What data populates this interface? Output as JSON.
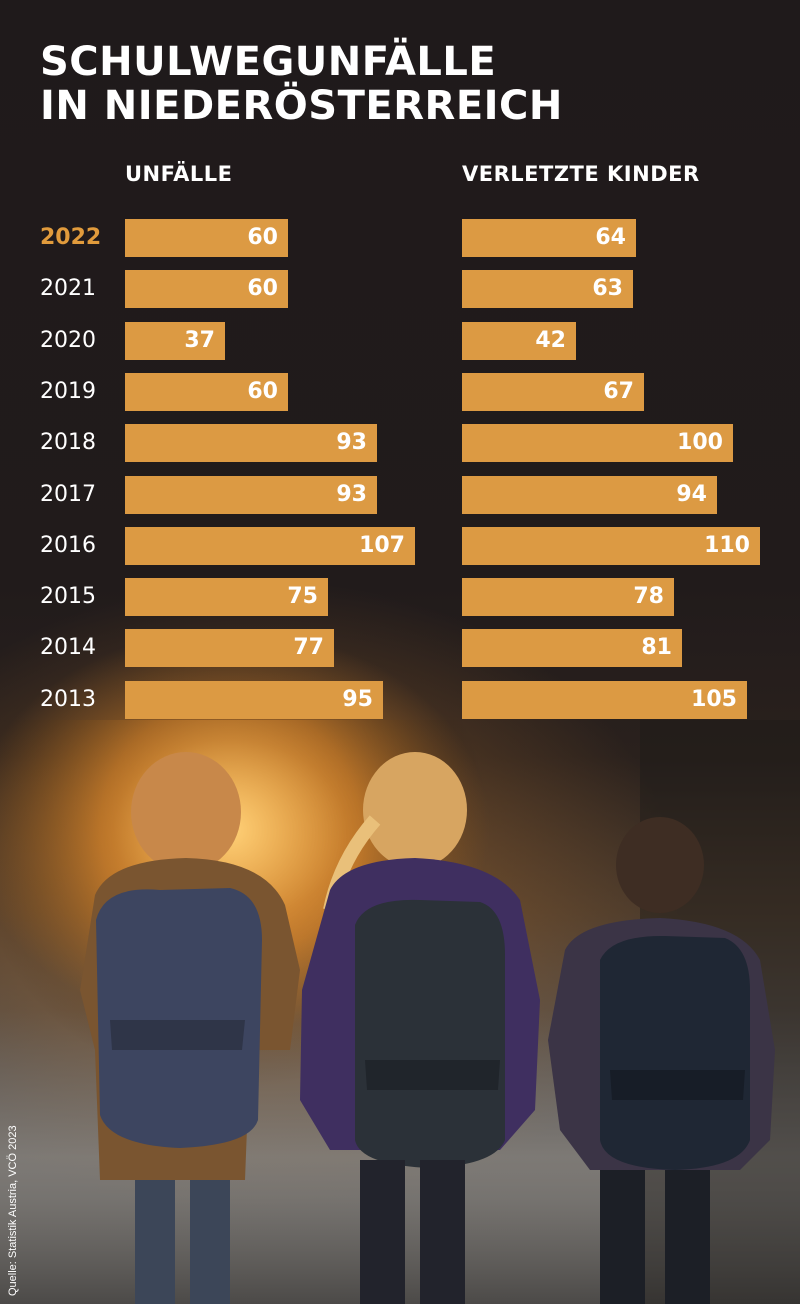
{
  "title": {
    "line1": "SCHULWEGUNFÄLLE",
    "line2": "IN NIEDERÖSTERREICH"
  },
  "source": "Quelle: Statistik Austria, VCÖ 2023",
  "colors": {
    "bar": "#dc9a43",
    "highlight_year": "#e19b3c",
    "text": "#ffffff",
    "background": "#1f1a1b"
  },
  "chart_data": [
    {
      "type": "bar",
      "orientation": "horizontal",
      "title": "UNFÄLLE",
      "categories": [
        "2022",
        "2021",
        "2020",
        "2019",
        "2018",
        "2017",
        "2016",
        "2015",
        "2014",
        "2013"
      ],
      "values": [
        60,
        60,
        37,
        60,
        93,
        93,
        107,
        75,
        77,
        95
      ],
      "highlight_category": "2022"
    },
    {
      "type": "bar",
      "orientation": "horizontal",
      "title": "VERLETZTE KINDER",
      "categories": [
        "2022",
        "2021",
        "2020",
        "2019",
        "2018",
        "2017",
        "2016",
        "2015",
        "2014",
        "2013"
      ],
      "values": [
        64,
        63,
        42,
        67,
        100,
        94,
        110,
        78,
        81,
        105
      ],
      "highlight_category": "2022"
    }
  ],
  "illustration": {
    "subject": "three children with backpacks walking toward sunset"
  }
}
